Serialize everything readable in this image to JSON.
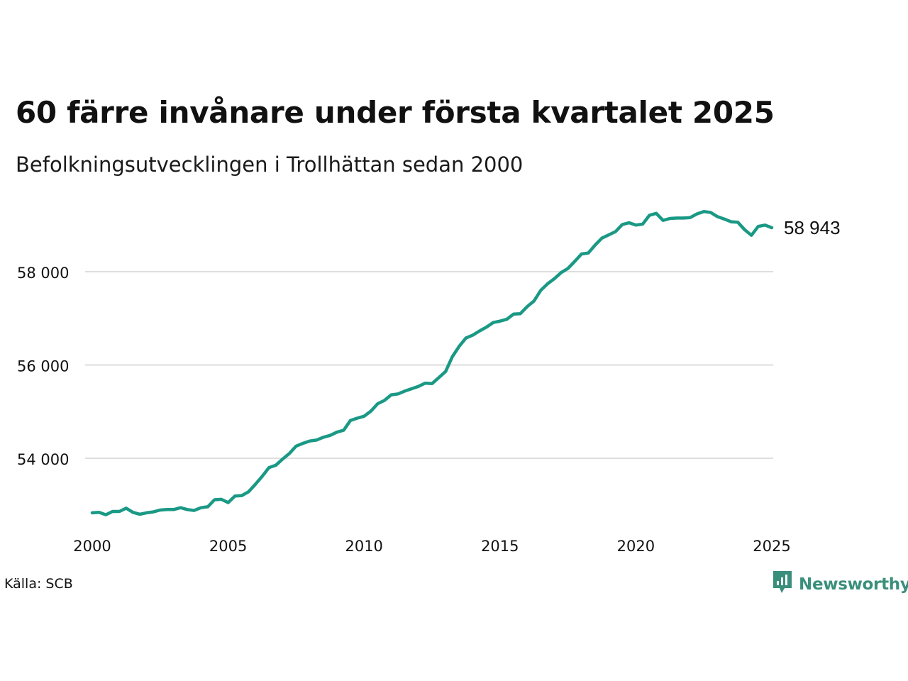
{
  "title": "60 färre invånare under första kvartalet 2025",
  "subtitle": "Befolkningsutvecklingen i Trollhättan sedan 2000",
  "source": "Källa: SCB",
  "brand": {
    "name": "Newsworthy",
    "icon": "newsworthy-logo-icon",
    "color": "#3a8f7c"
  },
  "chart_data": {
    "type": "line",
    "title": "60 färre invånare under första kvartalet 2025",
    "subtitle": "Befolkningsutvecklingen i Trollhättan sedan 2000",
    "xlabel": "",
    "ylabel": "",
    "xlim": [
      2000,
      2025
    ],
    "ylim": [
      52500,
      59600
    ],
    "x_ticks": [
      2000,
      2005,
      2010,
      2015,
      2020,
      2025
    ],
    "x_tick_labels": [
      "2000",
      "2005",
      "2010",
      "2015",
      "2020",
      "2025"
    ],
    "y_ticks": [
      54000,
      56000,
      58000
    ],
    "y_tick_labels": [
      "54 000",
      "56 000",
      "58 000"
    ],
    "grid": "horizontal",
    "line_color": "#1a9985",
    "end_label": "58 943",
    "series": [
      {
        "x": [
          2000.0,
          2000.25,
          2000.5,
          2000.75,
          2001.0,
          2001.25,
          2001.5,
          2001.75,
          2002.0,
          2002.25,
          2002.5,
          2002.75,
          2003.0,
          2003.25,
          2003.5,
          2003.75,
          2004.0,
          2004.25,
          2004.5,
          2004.75,
          2005.0,
          2005.25,
          2005.5,
          2005.75,
          2006.0,
          2006.25,
          2006.5,
          2006.75,
          2007.0,
          2007.25,
          2007.5,
          2007.75,
          2008.0,
          2008.25,
          2008.5,
          2008.75,
          2009.0,
          2009.25,
          2009.5,
          2009.75,
          2010.0,
          2010.25,
          2010.5,
          2010.75,
          2011.0,
          2011.25,
          2011.5,
          2011.75,
          2012.0,
          2012.25,
          2012.5,
          2012.75,
          2013.0,
          2013.25,
          2013.5,
          2013.75,
          2014.0,
          2014.25,
          2014.5,
          2014.75,
          2015.0,
          2015.25,
          2015.5,
          2015.75,
          2016.0,
          2016.25,
          2016.5,
          2016.75,
          2017.0,
          2017.25,
          2017.5,
          2017.75,
          2018.0,
          2018.25,
          2018.5,
          2018.75,
          2019.0,
          2019.25,
          2019.5,
          2019.75,
          2020.0,
          2020.25,
          2020.5,
          2020.75,
          2021.0,
          2021.25,
          2021.5,
          2021.75,
          2022.0,
          2022.25,
          2022.5,
          2022.75,
          2023.0,
          2023.25,
          2023.5,
          2023.75,
          2024.0,
          2024.25,
          2024.5,
          2024.75,
          2025.0
        ],
        "values": [
          52830,
          52840,
          52790,
          52860,
          52860,
          52930,
          52840,
          52800,
          52830,
          52850,
          52890,
          52900,
          52900,
          52940,
          52900,
          52880,
          52940,
          52960,
          53110,
          53120,
          53050,
          53190,
          53200,
          53280,
          53440,
          53610,
          53800,
          53850,
          53980,
          54100,
          54260,
          54320,
          54370,
          54390,
          54450,
          54490,
          54560,
          54600,
          54810,
          54860,
          54900,
          55010,
          55170,
          55240,
          55360,
          55380,
          55440,
          55490,
          55540,
          55610,
          55600,
          55730,
          55860,
          56180,
          56400,
          56580,
          56640,
          56730,
          56810,
          56910,
          56940,
          56980,
          57090,
          57100,
          57250,
          57370,
          57600,
          57740,
          57850,
          57980,
          58070,
          58220,
          58380,
          58400,
          58570,
          58720,
          58790,
          58860,
          59010,
          59050,
          59000,
          59020,
          59210,
          59250,
          59100,
          59140,
          59150,
          59150,
          59160,
          59240,
          59290,
          59270,
          59180,
          59130,
          59070,
          59060,
          58900,
          58780,
          58970,
          59000,
          58943
        ]
      }
    ]
  }
}
